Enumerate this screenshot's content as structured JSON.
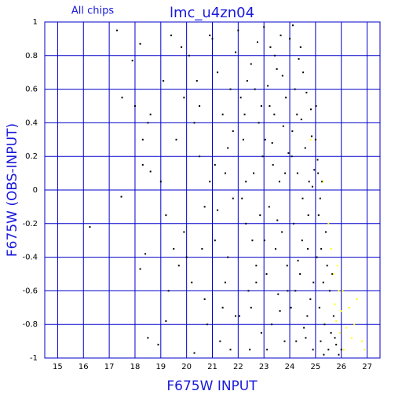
{
  "chart_data": {
    "type": "scatter",
    "title": "lmc_u4zn04",
    "subtitle": "All chips",
    "x_label": "F675W INPUT",
    "y_label": "F675W (OBS-INPUT)",
    "xlim": [
      14.5,
      27.5
    ],
    "ylim": [
      -1,
      1
    ],
    "xticks": [
      15,
      16,
      17,
      18,
      19,
      20,
      21,
      22,
      23,
      24,
      25,
      26,
      27
    ],
    "yticks": [
      -1,
      -0.8,
      -0.6,
      -0.4,
      -0.2,
      0,
      0.2,
      0.4,
      0.6,
      0.8,
      1
    ],
    "grid": true,
    "grid_color": "#0000cc",
    "series": [
      {
        "color": "#000000",
        "x": [
          16.25,
          17.3,
          17.5,
          17.47,
          17.9,
          18.0,
          18.3,
          18.5,
          18.6,
          18.4,
          18.2,
          18.5,
          18.9,
          18.2,
          18.6,
          18.3,
          19.1,
          19.0,
          19.2,
          19.5,
          19.7,
          19.3,
          19.6,
          19.8,
          19.9,
          19.4,
          19.9,
          19.2,
          20.1,
          20.3,
          20.5,
          20.7,
          20.2,
          20.8,
          20.4,
          20.9,
          20.6,
          20.3,
          20.9,
          20.5,
          20.0,
          20.7,
          21.0,
          21.2,
          21.4,
          21.6,
          21.8,
          21.1,
          21.5,
          21.9,
          21.3,
          21.7,
          21.5,
          21.2,
          21.8,
          21.4,
          21.9,
          21.6,
          21.1,
          21.7,
          22.0,
          22.1,
          22.2,
          22.3,
          22.4,
          22.5,
          22.6,
          22.7,
          22.8,
          22.9,
          22.15,
          22.35,
          22.55,
          22.75,
          22.95,
          22.05,
          22.25,
          22.45,
          22.65,
          22.85,
          22.5,
          22.9,
          22.3,
          22.7,
          23.0,
          23.05,
          23.1,
          23.15,
          23.2,
          23.25,
          23.3,
          23.35,
          23.4,
          23.45,
          23.5,
          23.55,
          23.6,
          23.65,
          23.7,
          23.75,
          23.8,
          23.85,
          23.9,
          23.95,
          23.12,
          23.42,
          23.62,
          23.82,
          23.22,
          23.52,
          23.72,
          23.92,
          23.32,
          23.02,
          24.0,
          24.05,
          24.1,
          24.15,
          24.2,
          24.25,
          24.3,
          24.35,
          24.4,
          24.45,
          24.5,
          24.55,
          24.6,
          24.65,
          24.7,
          24.75,
          24.8,
          24.85,
          24.9,
          24.95,
          24.12,
          24.32,
          24.52,
          24.72,
          24.92,
          24.22,
          24.42,
          24.62,
          24.82,
          24.08,
          24.28,
          24.48,
          24.68,
          24.88,
          25.0,
          25.05,
          25.1,
          25.15,
          25.2,
          25.25,
          25.3,
          25.35,
          25.4,
          25.5,
          25.55,
          25.6,
          25.7,
          25.8,
          25.9,
          25.02,
          25.12,
          25.22,
          25.32,
          25.45,
          25.65,
          25.75,
          25.08,
          25.18,
          26.0
        ],
        "y": [
          -0.22,
          0.95,
          0.55,
          -0.04,
          0.77,
          0.5,
          0.3,
          0.4,
          0.45,
          -0.38,
          -0.47,
          -0.88,
          -0.92,
          0.87,
          0.11,
          0.15,
          0.65,
          0.05,
          -0.15,
          -0.35,
          -0.45,
          -0.6,
          0.3,
          0.85,
          0.55,
          0.92,
          -0.25,
          -0.78,
          0.8,
          0.4,
          0.2,
          -0.1,
          -0.55,
          -0.8,
          0.65,
          0.05,
          -0.35,
          -0.97,
          0.92,
          0.5,
          -0.4,
          -0.65,
          0.9,
          0.7,
          0.45,
          0.25,
          -0.05,
          -0.3,
          -0.55,
          -0.75,
          -0.9,
          0.6,
          0.1,
          -0.12,
          0.35,
          -0.7,
          0.82,
          -0.4,
          0.15,
          -0.95,
          0.95,
          0.55,
          0.3,
          -0.2,
          -0.6,
          0.75,
          0.1,
          -0.45,
          0.4,
          -0.85,
          -0.05,
          0.65,
          -0.3,
          0.88,
          0.2,
          -0.75,
          0.45,
          -0.95,
          0.6,
          -0.15,
          -0.7,
          0.5,
          0.05,
          -0.55,
          0.97,
          0.3,
          -0.5,
          0.62,
          -0.1,
          0.85,
          -0.8,
          0.15,
          0.45,
          -0.35,
          0.72,
          -0.62,
          0.05,
          0.92,
          -0.25,
          0.38,
          -0.9,
          0.55,
          -0.45,
          0.22,
          -0.95,
          0.8,
          -0.72,
          0.1,
          0.5,
          -0.18,
          0.68,
          -0.6,
          0.28,
          -0.3,
          0.9,
          -0.7,
          0.35,
          -0.2,
          0.6,
          -0.9,
          0.1,
          0.78,
          -0.5,
          0.42,
          -0.05,
          -0.82,
          0.25,
          0.58,
          -0.35,
          0.05,
          -0.65,
          0.32,
          -0.95,
          0.12,
          0.98,
          -0.42,
          0.7,
          -0.15,
          -0.55,
          -0.6,
          0.85,
          -0.88,
          0.48,
          0.2,
          0.45,
          -0.3,
          -0.75,
          0.02,
          0.3,
          -0.4,
          0.1,
          -0.7,
          -0.9,
          0.05,
          -0.55,
          -0.8,
          -0.25,
          -0.95,
          -0.6,
          -0.85,
          -0.75,
          -0.92,
          -0.98,
          0.5,
          -0.15,
          -0.35,
          -0.98,
          -0.45,
          -0.5,
          -0.88,
          0.18,
          -0.05,
          -0.95
        ]
      },
      {
        "color": "#ffff00",
        "x": [
          25.6,
          25.7,
          25.9,
          26.0,
          26.2,
          26.4,
          26.6,
          26.8,
          25.8,
          26.1,
          25.5,
          26.3,
          25.95,
          26.5,
          26.9,
          25.85,
          26.05,
          25.75,
          24.8,
          25.3
        ],
        "y": [
          -0.35,
          -0.5,
          -0.6,
          -0.72,
          -0.82,
          -0.88,
          -0.65,
          -0.9,
          -0.78,
          -0.95,
          -0.2,
          -0.7,
          -0.85,
          -0.8,
          -0.95,
          -0.45,
          -0.6,
          -0.68,
          0.3,
          0.05
        ]
      }
    ]
  }
}
